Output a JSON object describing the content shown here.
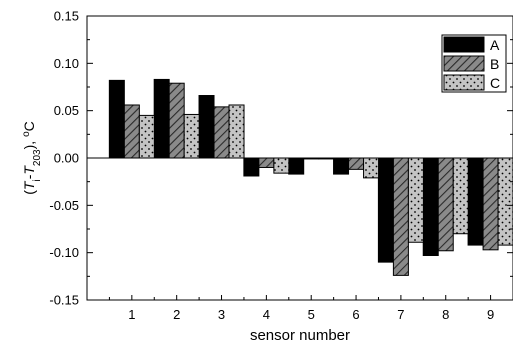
{
  "chart_data": {
    "type": "bar",
    "title": "",
    "xlabel": "sensor number",
    "ylabel_parts": [
      "(",
      "T",
      "i",
      "-",
      "T",
      "203",
      "), ",
      "o",
      "C"
    ],
    "categories": [
      "1",
      "2",
      "3",
      "4",
      "5",
      "6",
      "7",
      "8",
      "9"
    ],
    "ylim": [
      -0.15,
      0.15
    ],
    "yticks": [
      "0.15",
      "0.10",
      "0.05",
      "0.00",
      "-0.05",
      "-0.10",
      "-0.15"
    ],
    "ytick_values": [
      0.15,
      0.1,
      0.05,
      0.0,
      -0.05,
      -0.1,
      -0.15
    ],
    "grid": false,
    "legend_position": "top-right",
    "series": [
      {
        "name": "A",
        "style": "solid",
        "color": "#000000",
        "values": [
          0.082,
          0.083,
          0.066,
          -0.019,
          -0.017,
          -0.017,
          -0.11,
          -0.103,
          -0.092
        ]
      },
      {
        "name": "B",
        "style": "hatched",
        "color": "#808080",
        "values": [
          0.056,
          0.079,
          0.054,
          -0.01,
          -0.001,
          -0.012,
          -0.124,
          -0.098,
          -0.097
        ]
      },
      {
        "name": "C",
        "style": "dotted",
        "color": "#c0c0c0",
        "values": [
          0.045,
          0.046,
          0.056,
          -0.016,
          -0.001,
          -0.021,
          -0.089,
          -0.08,
          -0.092
        ]
      }
    ]
  }
}
